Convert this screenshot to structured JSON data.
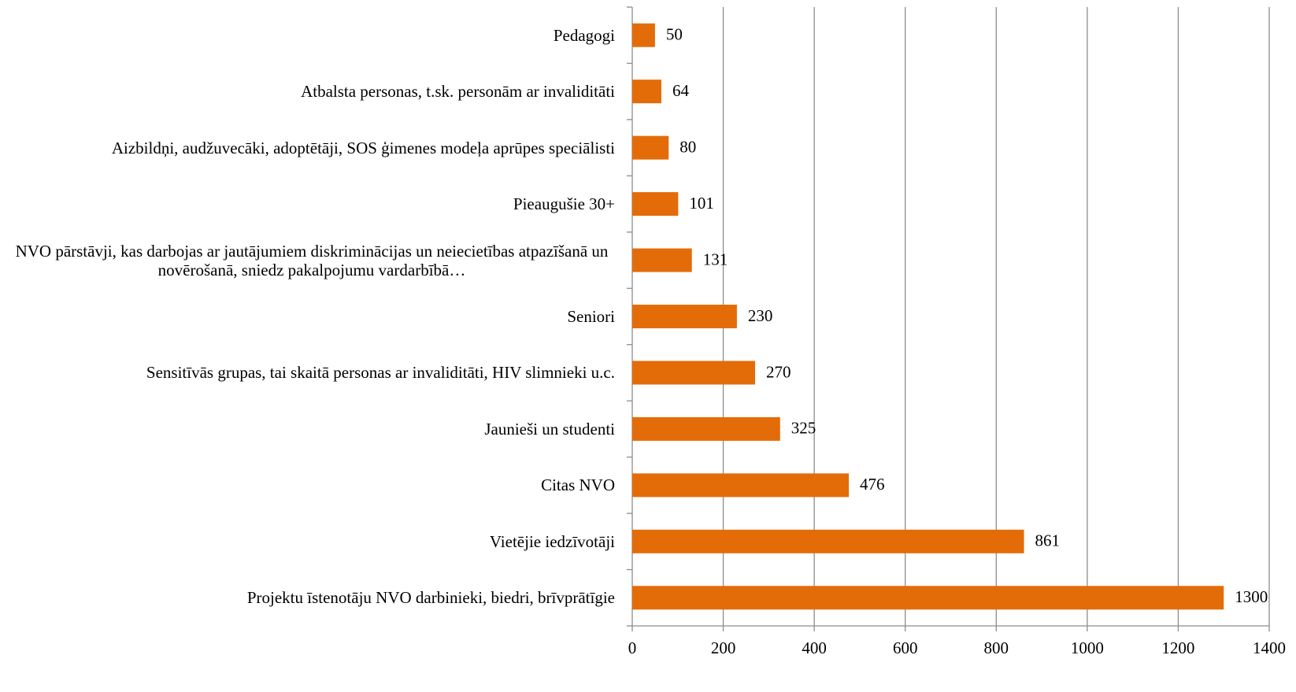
{
  "chart_data": {
    "type": "barh",
    "categories": [
      "Pedagogi",
      "Atbalsta personas, t.sk. personām ar invaliditāti",
      "Aizbildņi, audžuvecāki, adoptētāji, SOS ģimenes modeļa aprūpes speciālisti",
      "Pieaugušie 30+",
      "NVO pārstāvji, kas darbojas ar jautājumiem diskriminācijas un neiecietības atpazīšanā un novērošanā, sniedz pakalpojumu vardarbībā…",
      "Seniori",
      "Sensitīvās grupas, tai skaitā personas ar invaliditāti, HIV slimnieki u.c.",
      "Jaunieši un studenti",
      "Citas NVO",
      "Vietējie iedzīvotāji",
      "Projektu īstenotāju NVO darbinieki, biedri, brīvprātīgie"
    ],
    "values": [
      50,
      64,
      80,
      101,
      131,
      230,
      270,
      325,
      476,
      861,
      1300
    ],
    "color": "#e36c09",
    "xlim": [
      0,
      1400
    ],
    "xticks": [
      0,
      200,
      400,
      600,
      800,
      1000,
      1200,
      1400
    ],
    "grid": true
  }
}
